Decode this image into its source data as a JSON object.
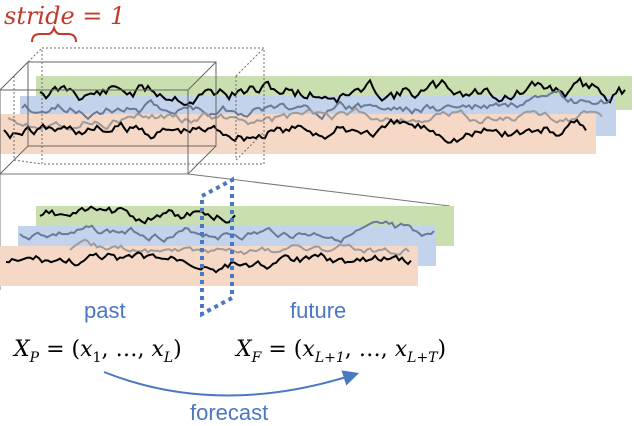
{
  "stride_label": "stride = 1",
  "past_label": "past",
  "future_label": "future",
  "past_formula": "X_P = (x_1, …, x_L)",
  "future_formula": "X_F = (x_{L+1}, …, x_{L+T})",
  "forecast_label": "forecast",
  "colors": {
    "band_green": "#c9dfb0",
    "band_blue": "#c3d3ec",
    "band_orange": "#f5d9c6",
    "series_black": "#000000",
    "series_grey": "#a09a9a",
    "series_slate": "#6a7a98",
    "stride_red": "#c0392b",
    "accent_blue": "#4a78c2"
  },
  "icons": [
    "curly-brace-icon",
    "forecast-arrow-icon"
  ]
}
